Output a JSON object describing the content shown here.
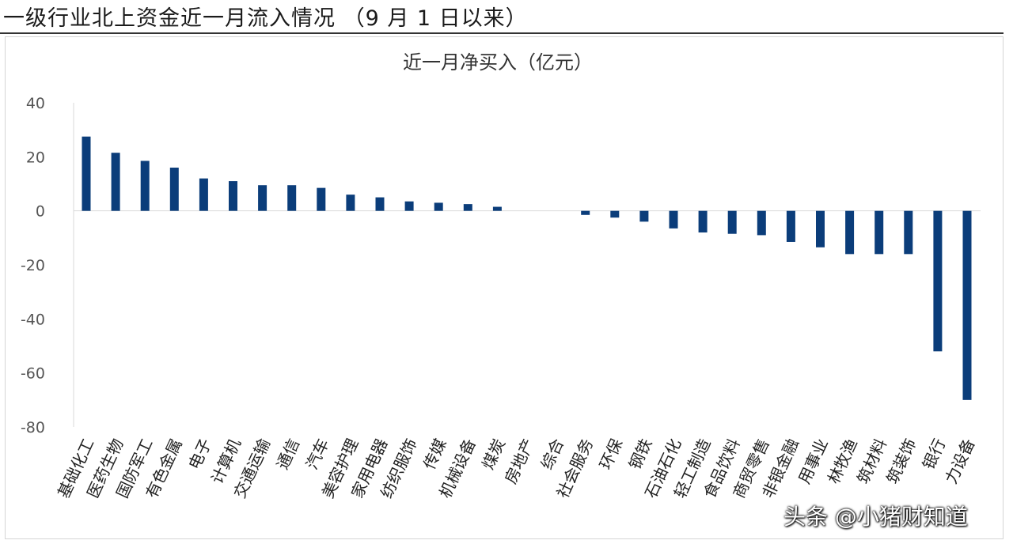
{
  "header": {
    "title": "一级行业北上资金近一月流入情况 （9 月 1 日以来）"
  },
  "watermark": "头条 @小猪财知道",
  "chart_data": {
    "type": "bar",
    "title": "近一月净买入（亿元）",
    "xlabel": "",
    "ylabel": "",
    "ylim": [
      -80,
      40
    ],
    "yticks": [
      -80,
      -60,
      -40,
      -20,
      0,
      20,
      40
    ],
    "grid": false,
    "legend": "none",
    "bar_color": "#0b3d7a",
    "categories": [
      "基础化工",
      "医药生物",
      "国防军工",
      "有色金属",
      "电子",
      "计算机",
      "交通运输",
      "通信",
      "汽车",
      "美容护理",
      "家用电器",
      "纺织服饰",
      "传媒",
      "机械设备",
      "煤炭",
      "房地产",
      "综合",
      "社会服务",
      "环保",
      "钢铁",
      "石油石化",
      "轻工制造",
      "食品饮料",
      "商贸零售",
      "非银金融",
      "公用事业",
      "农林牧渔",
      "建筑材料",
      "建筑装饰",
      "银行",
      "电力设备"
    ],
    "category_labels": [
      "基础化工",
      "医药生物",
      "国防军工",
      "有色金属",
      "电子",
      "计算机",
      "交通运输",
      "通信",
      "汽车",
      "美容护理",
      "家用电器",
      "纺织服饰",
      "传媒",
      "机械设备",
      "煤炭",
      "房地产",
      "综合",
      "社会服务",
      "环保",
      "钢铁",
      "石油石化",
      "轻工制造",
      "食品饮料",
      "商贸零售",
      "非银金融",
      "用事业",
      "林牧渔",
      "筑材料",
      "筑装饰",
      "银行",
      "力设备"
    ],
    "values": [
      27.5,
      21.5,
      18.5,
      16,
      12,
      11,
      9.5,
      9.5,
      8.5,
      6,
      5,
      3.5,
      3,
      2.5,
      1.5,
      0,
      0,
      -1.5,
      -2.5,
      -4,
      -6.5,
      -8,
      -8.5,
      -9,
      -11.5,
      -13.5,
      -16,
      -16,
      -16,
      -52,
      -70
    ]
  }
}
